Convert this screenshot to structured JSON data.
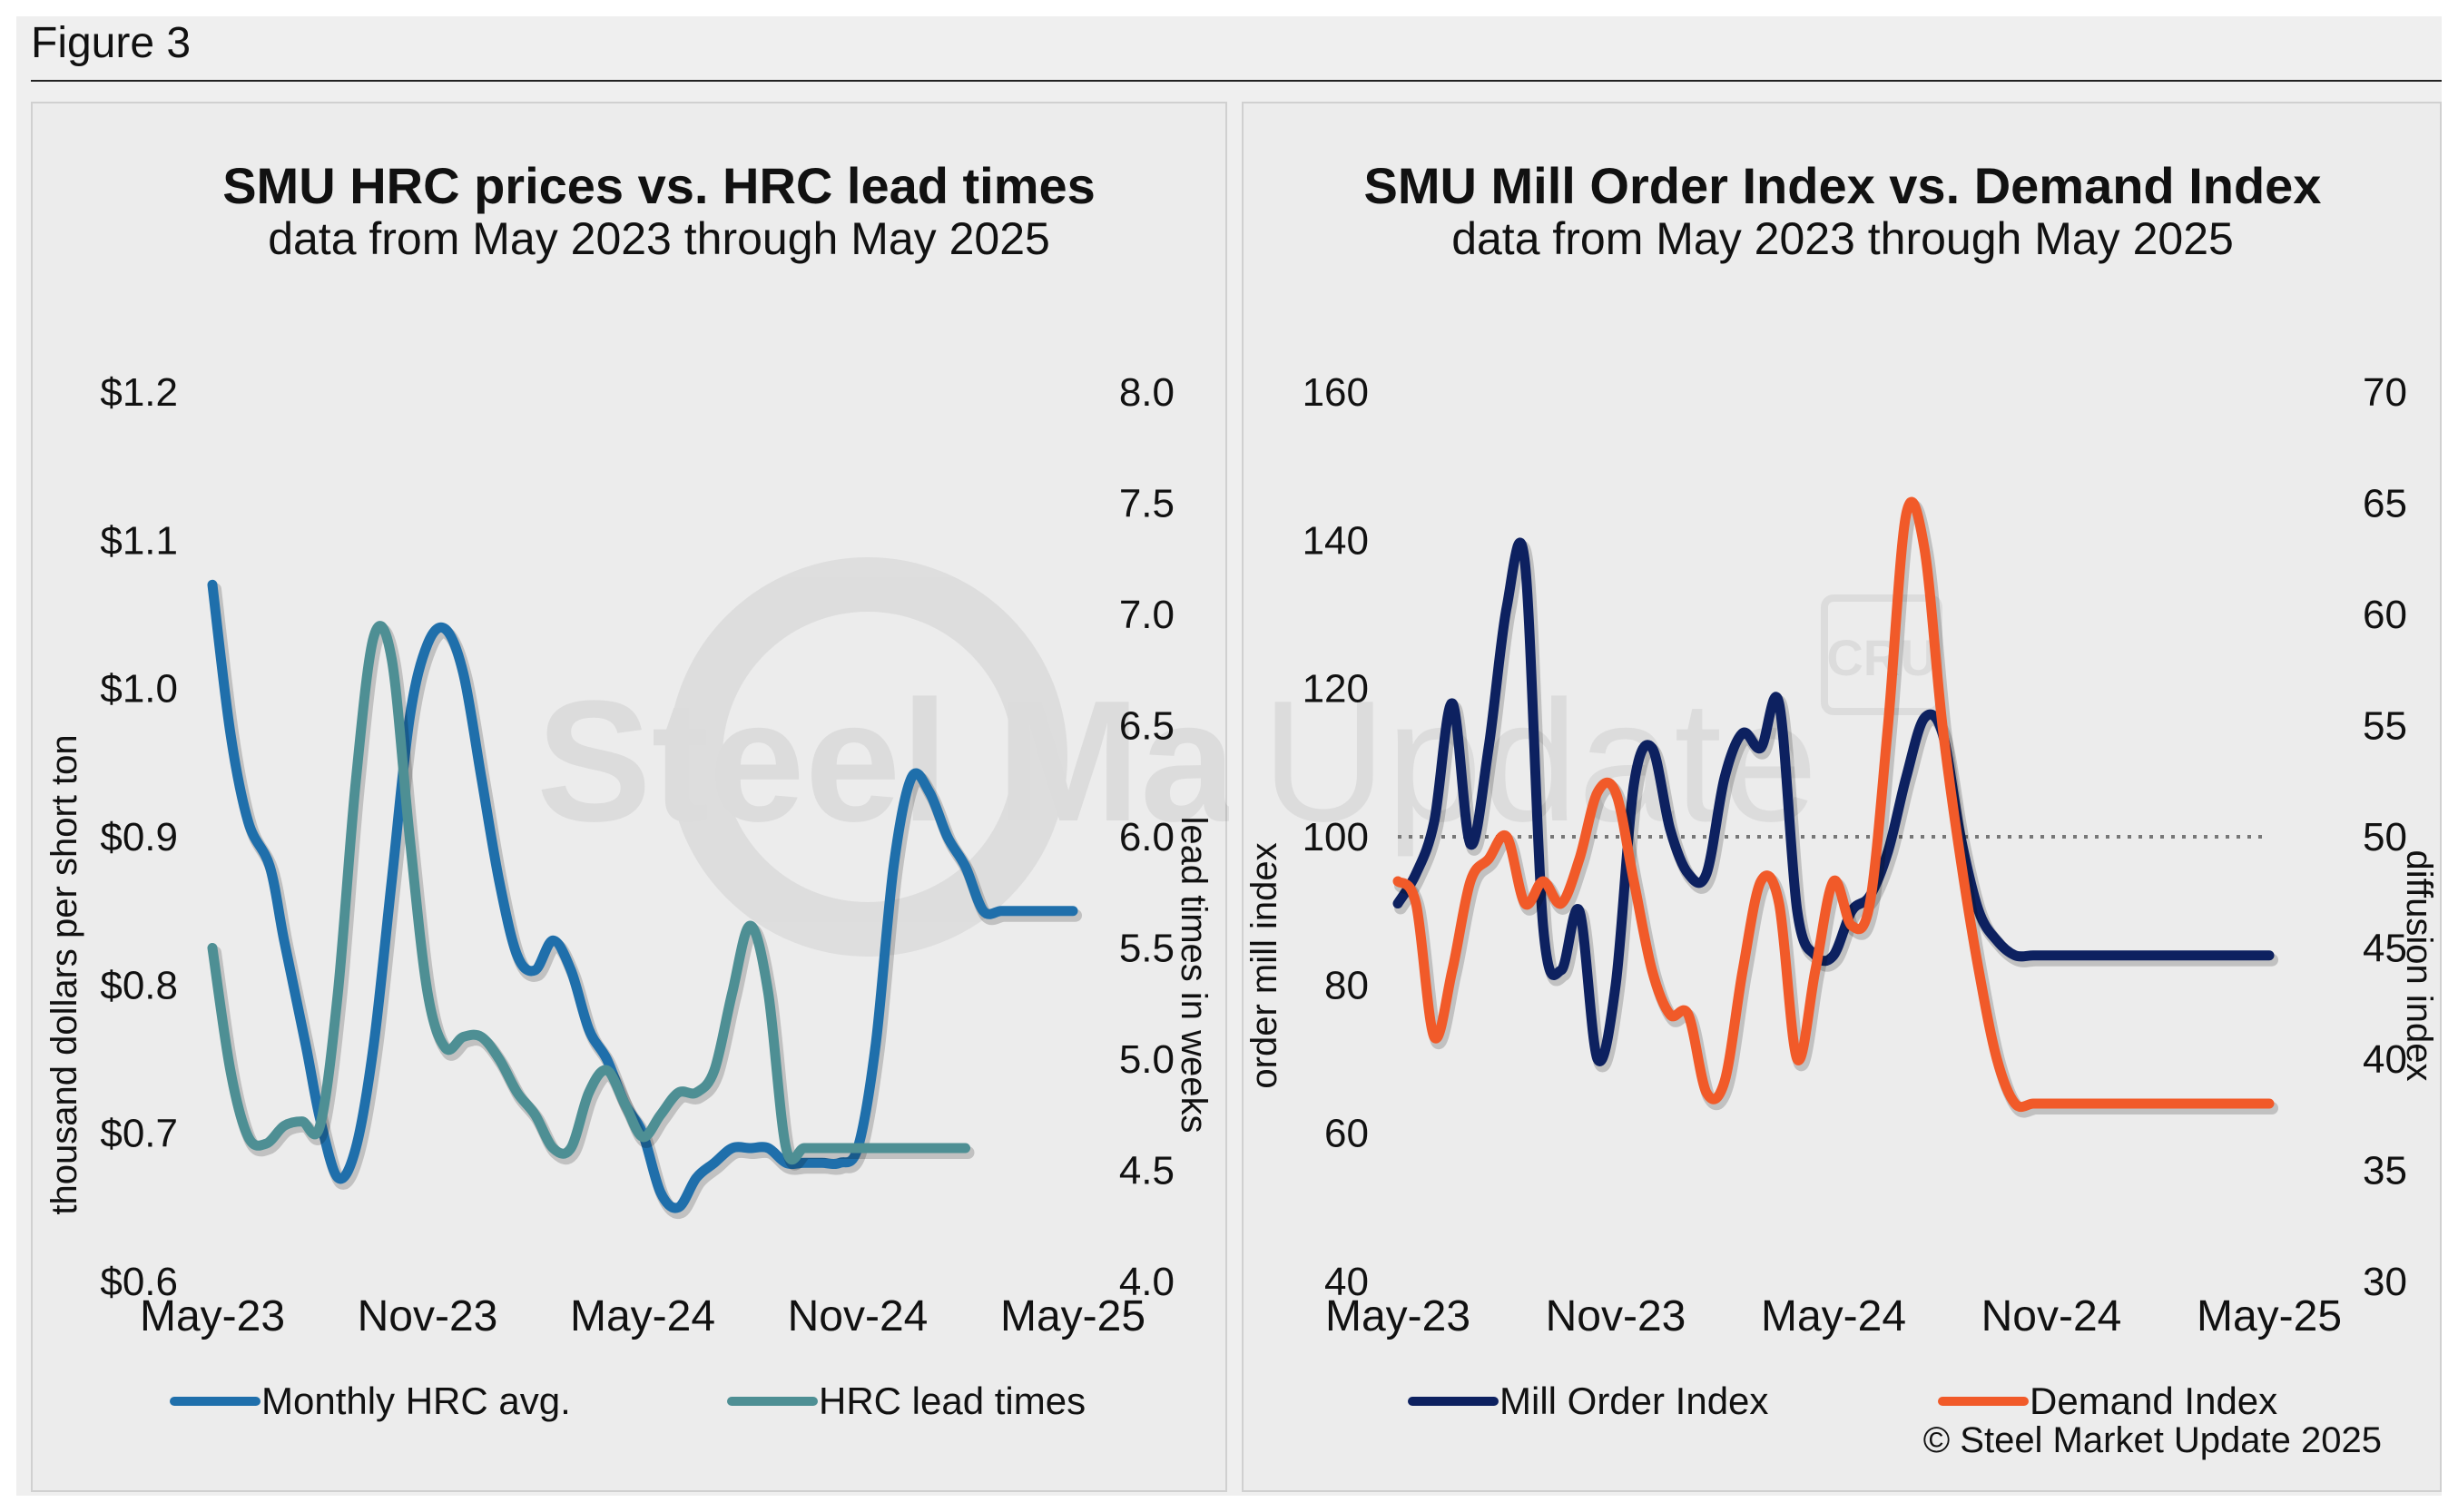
{
  "figure": {
    "title": "Figure 3"
  },
  "watermark": {
    "text1": "Steel Market",
    "text2": "Update",
    "badge": "CRU"
  },
  "copyright": "© Steel Market Update 2025",
  "chart_data": [
    {
      "type": "line",
      "title": "SMU HRC prices vs. HRC lead times",
      "subtitle": "data from May 2023 through May 2025",
      "ylabel": "thousand dollars per short ton",
      "y2label": "lead times in weeks",
      "ylim": [
        0.6,
        1.2
      ],
      "y2lim": [
        4.0,
        8.0
      ],
      "yticks": [
        "$1.2",
        "$1.1",
        "$1.0",
        "$0.9",
        "$0.8",
        "$0.7",
        "$0.6"
      ],
      "y2ticks": [
        "8.0",
        "7.5",
        "7.0",
        "6.5",
        "6.0",
        "5.5",
        "5.0",
        "4.5",
        "4.0"
      ],
      "xticks": [
        "May-23",
        "Nov-23",
        "May-24",
        "Nov-24",
        "May-25"
      ],
      "xlim": [
        0,
        24
      ],
      "colors": {
        "hrc": "#1f6fab",
        "lead": "#4e8f94"
      },
      "series": [
        {
          "name": "Monthly HRC avg.",
          "axis": "left",
          "x": [
            0,
            0.5,
            1,
            1.6,
            2,
            2.6,
            3,
            3.5,
            4,
            4.5,
            5,
            5.5,
            6,
            6.5,
            7,
            7.5,
            8,
            8.5,
            9,
            9.5,
            10,
            10.5,
            11,
            11.5,
            12,
            12.5,
            13,
            13.5,
            14,
            14.5,
            15,
            15.5,
            16,
            16.5,
            17,
            17.5,
            18,
            18.5,
            19,
            19.5,
            20,
            20.5,
            21,
            21.5,
            22,
            22.5,
            23,
            23.5,
            24
          ],
          "values": [
            1.07,
            0.97,
            0.91,
            0.88,
            0.83,
            0.76,
            0.71,
            0.67,
            0.69,
            0.76,
            0.87,
            0.98,
            1.03,
            1.04,
            1.01,
            0.94,
            0.87,
            0.82,
            0.81,
            0.83,
            0.81,
            0.77,
            0.75,
            0.72,
            0.7,
            0.66,
            0.65,
            0.67,
            0.68,
            0.69,
            0.69,
            0.69,
            0.68,
            0.68,
            0.68,
            0.68,
            0.69,
            0.76,
            0.88,
            0.94,
            0.93,
            0.9,
            0.88,
            0.85,
            0.85,
            0.85,
            0.85,
            0.85,
            0.85
          ]
        },
        {
          "name": "HRC lead times",
          "axis": "right",
          "x": [
            0,
            0.5,
            1,
            1.5,
            2,
            2.5,
            3,
            3.5,
            4,
            4.5,
            5,
            5.5,
            6,
            6.5,
            7,
            7.5,
            8,
            8.5,
            9,
            9.5,
            10,
            10.5,
            11,
            11.5,
            12,
            12.5,
            13,
            13.5,
            14,
            14.5,
            15,
            15.5,
            16,
            16.5,
            17,
            17.5,
            18,
            18.5,
            19,
            19.5,
            20,
            20.5,
            21
          ],
          "values": [
            5.5,
            4.95,
            4.65,
            4.62,
            4.7,
            4.72,
            4.7,
            5.3,
            6.25,
            6.9,
            6.8,
            6.0,
            5.3,
            5.05,
            5.1,
            5.1,
            5.0,
            4.85,
            4.75,
            4.6,
            4.6,
            4.85,
            4.95,
            4.8,
            4.65,
            4.75,
            4.85,
            4.85,
            4.95,
            5.3,
            5.6,
            5.3,
            4.6,
            4.6,
            4.6,
            4.6,
            4.6,
            4.6,
            4.6,
            4.6,
            4.6,
            4.6,
            4.6
          ]
        }
      ]
    },
    {
      "type": "line",
      "title": "SMU Mill Order Index vs. Demand Index",
      "subtitle": "data from May 2023 through May 2025",
      "ylabel": "order mill index",
      "y2label": "diffusion index",
      "ylim": [
        40,
        160
      ],
      "y2lim": [
        30,
        70
      ],
      "yticks": [
        "160",
        "140",
        "120",
        "100",
        "80",
        "60",
        "40"
      ],
      "y2ticks": [
        "70",
        "65",
        "60",
        "55",
        "50",
        "45",
        "40",
        "35",
        "30"
      ],
      "xticks": [
        "May-23",
        "Nov-23",
        "May-24",
        "Nov-24",
        "May-25"
      ],
      "xlim": [
        0,
        24
      ],
      "reference_line": {
        "axis": "left",
        "value": 100
      },
      "colors": {
        "moi": "#0d2160",
        "demand": "#f15a29",
        "reference": "#777777"
      },
      "series": [
        {
          "name": "Mill Order Index",
          "axis": "left",
          "x": [
            0,
            0.5,
            1,
            1.5,
            2,
            2.5,
            3,
            3.5,
            4,
            4.5,
            5,
            5.5,
            6,
            6.5,
            7,
            7.5,
            8,
            8.5,
            9,
            9.5,
            10,
            10.5,
            11,
            11.5,
            12,
            12.5,
            13,
            13.5,
            14,
            14.5,
            15,
            15.5,
            16,
            16.5,
            17,
            17.5,
            18,
            18.5,
            19,
            19.5,
            20,
            20.5,
            21,
            21.5,
            22,
            22.5,
            23,
            23.5,
            24
          ],
          "values": [
            91,
            95,
            102,
            118,
            99,
            112,
            131,
            137,
            88,
            82,
            90,
            70,
            80,
            107,
            112,
            101,
            95,
            95,
            108,
            114,
            112,
            118,
            90,
            84,
            84,
            90,
            92,
            98,
            108,
            116,
            114,
            100,
            90,
            86,
            84,
            84,
            84,
            84,
            84,
            84,
            84,
            84,
            84,
            84,
            84,
            84,
            84,
            84,
            84
          ]
        },
        {
          "name": "Demand Index",
          "axis": "right",
          "x": [
            0,
            0.5,
            1,
            1.5,
            2,
            2.5,
            3,
            3.5,
            4,
            4.5,
            5,
            5.5,
            6,
            6.5,
            7,
            7.5,
            8,
            8.5,
            9,
            9.5,
            10,
            10.5,
            11,
            11.5,
            12,
            12.5,
            13,
            13.5,
            14,
            14.5,
            15,
            15.5,
            16,
            16.5,
            17,
            17.5,
            18,
            18.5,
            19,
            19.5,
            20,
            20.5,
            21,
            21.5,
            22,
            22.5,
            23,
            23.5,
            24
          ],
          "values": [
            48,
            47,
            41,
            44,
            48,
            49,
            50,
            47,
            48,
            47,
            49,
            52,
            52,
            48,
            44,
            42,
            42,
            38.5,
            39,
            44,
            48,
            47,
            40,
            44,
            48,
            46,
            47,
            55,
            64.5,
            63,
            55,
            49,
            44,
            40,
            38,
            38,
            38,
            38,
            38,
            38,
            38,
            38,
            38,
            38,
            38,
            38,
            38,
            38,
            38
          ]
        }
      ]
    }
  ]
}
